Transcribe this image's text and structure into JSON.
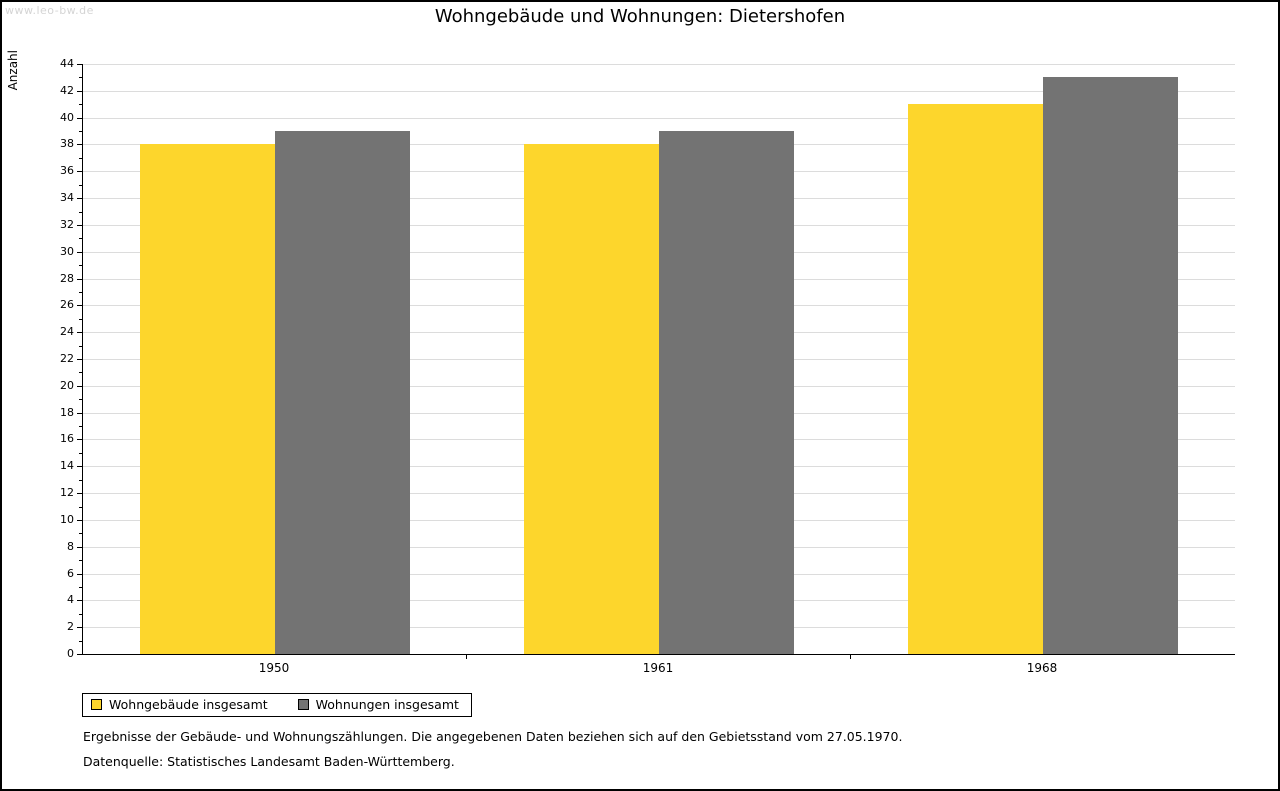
{
  "page": {
    "watermark": "www.leo-bw.de"
  },
  "chart_data": {
    "type": "bar",
    "title": "Wohngebäude und Wohnungen: Dietershofen",
    "categories": [
      "1950",
      "1961",
      "1968"
    ],
    "series": [
      {
        "name": "Wohngebäude insgesamt",
        "color": "#fdd62c",
        "values": [
          38,
          38,
          41
        ]
      },
      {
        "name": "Wohnungen insgesamt",
        "color": "#737373",
        "values": [
          39,
          39,
          43
        ]
      }
    ],
    "xlabel": "",
    "ylabel": "Anzahl",
    "ylim": [
      0,
      44
    ],
    "ytick_step": 2,
    "grid": true,
    "legend_position": "bottom-left"
  },
  "footer": {
    "note": "Ergebnisse der Gebäude- und Wohnungszählungen. Die angegebenen Daten beziehen sich auf den Gebietsstand vom 27.05.1970.",
    "source": "Datenquelle: Statistisches Landesamt Baden-Württemberg."
  }
}
